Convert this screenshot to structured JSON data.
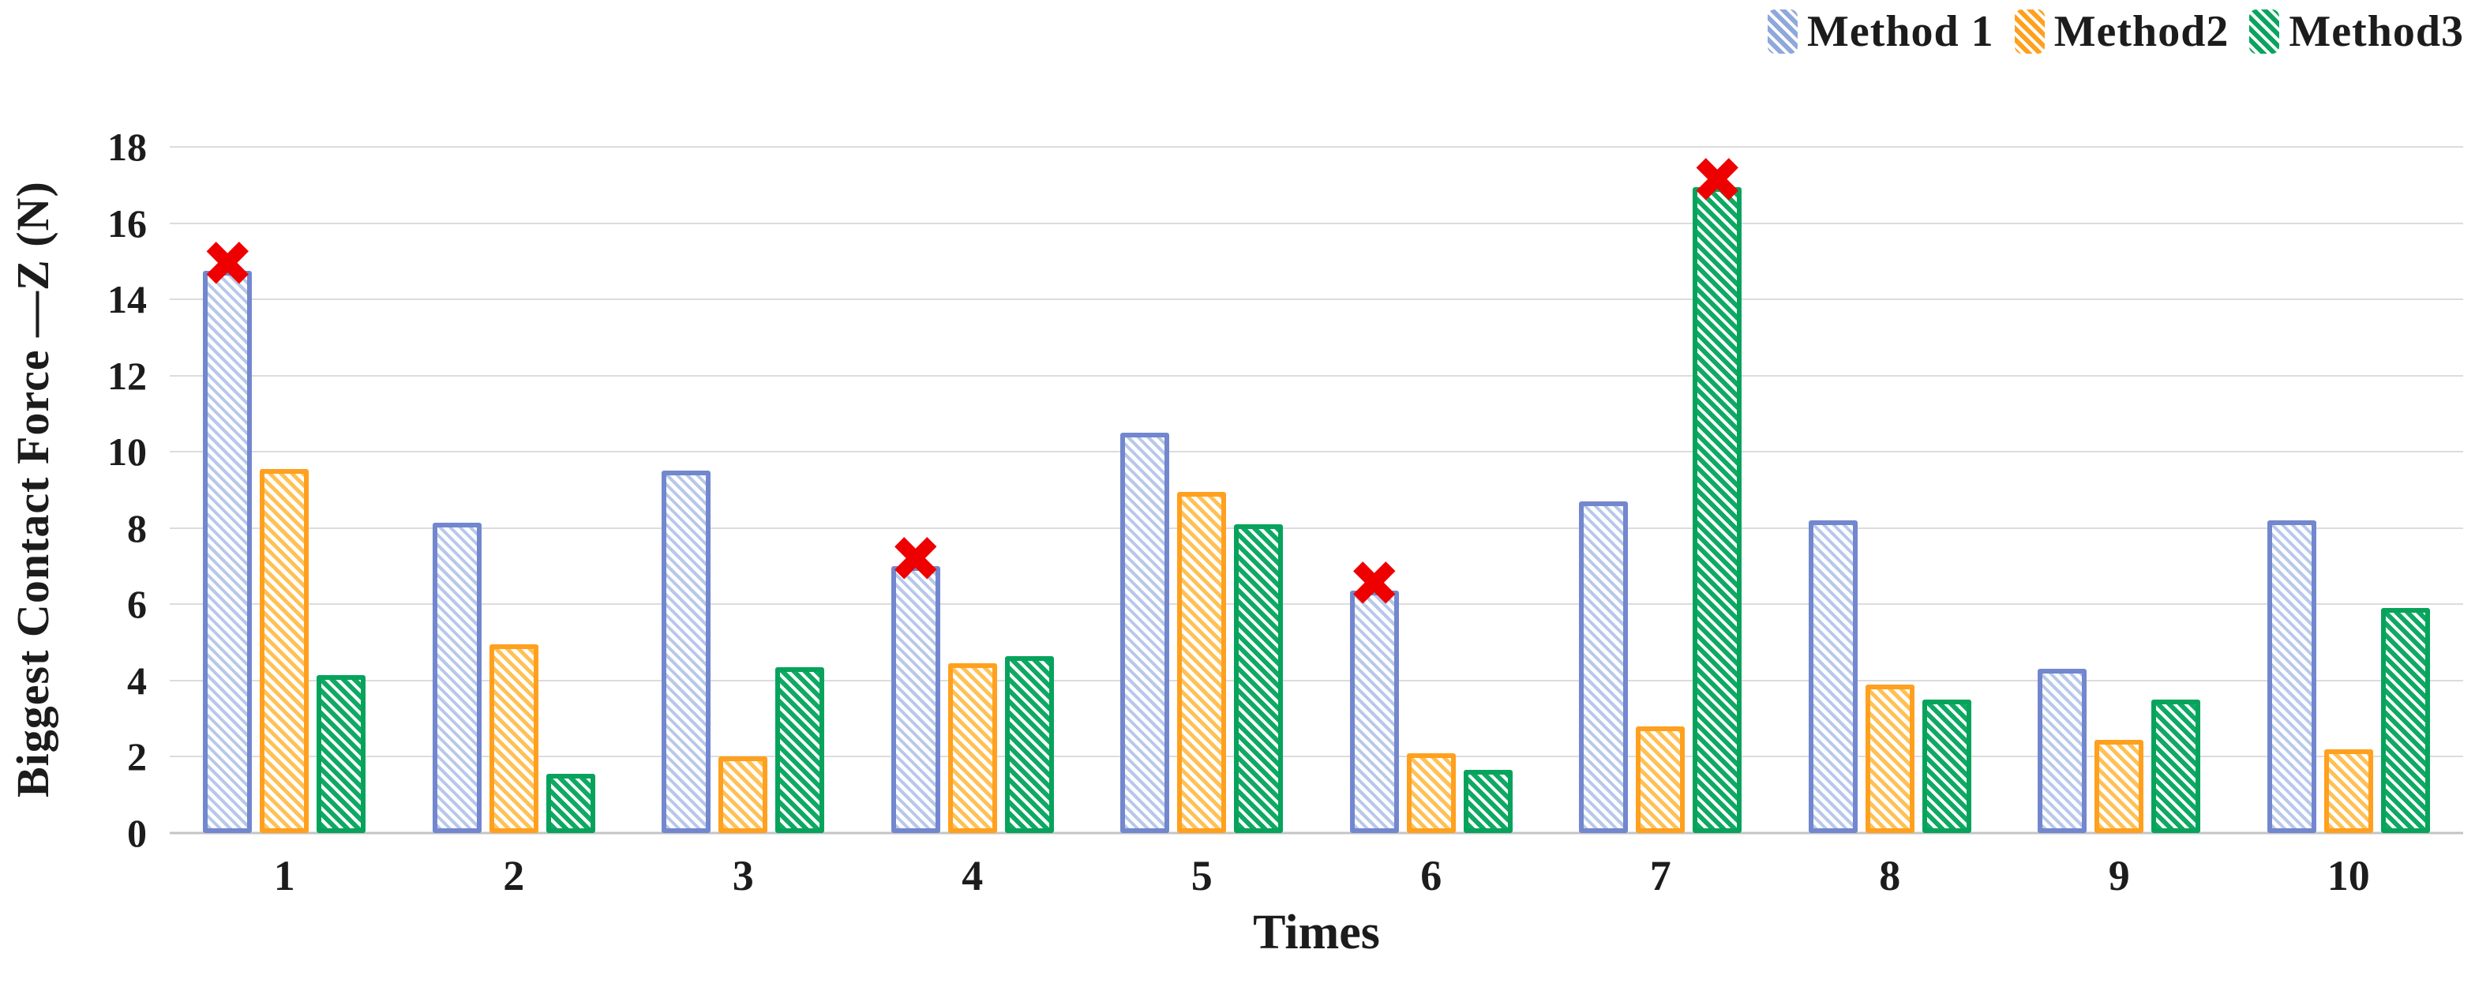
{
  "figure": {
    "y_axis_title": "Biggest Contact Force —Z (N)",
    "x_axis_title": "Times"
  },
  "chart_data": {
    "type": "bar",
    "title": "",
    "xlabel": "Times",
    "ylabel": "Biggest Contact Force —Z (N)",
    "ylim": [
      0,
      18
    ],
    "ytick_step": 2,
    "grid": true,
    "legend_position": "top-right",
    "categories": [
      1,
      2,
      3,
      4,
      5,
      6,
      7,
      8,
      9,
      10
    ],
    "series": [
      {
        "name": "Method 1",
        "border_color": "#7287CE",
        "hatch_color": "#B7C8EB",
        "swatch_color": "#8FA8DC",
        "hatch_width": 4,
        "hatch_gap": 5,
        "values": [
          14.75,
          8.15,
          9.5,
          7.0,
          10.5,
          6.35,
          8.7,
          8.2,
          4.3,
          8.2
        ]
      },
      {
        "name": "Method2",
        "border_color": "#FFA01E",
        "hatch_color": "#FFC155",
        "swatch_color": "#FFA01E",
        "hatch_width": 5,
        "hatch_gap": 5,
        "values": [
          9.55,
          4.95,
          2.0,
          4.45,
          8.95,
          2.1,
          2.8,
          3.9,
          2.45,
          2.2
        ]
      },
      {
        "name": "Method3",
        "border_color": "#07A35C",
        "hatch_color": "#0FA963",
        "swatch_color": "#0AA45E",
        "hatch_width": 6,
        "hatch_gap": 4,
        "values": [
          4.15,
          1.55,
          4.35,
          4.65,
          8.1,
          1.65,
          16.95,
          3.5,
          3.5,
          5.9
        ]
      }
    ],
    "markers": [
      {
        "series": "Method 1",
        "category": 1
      },
      {
        "series": "Method 1",
        "category": 4
      },
      {
        "series": "Method 1",
        "category": 6
      },
      {
        "series": "Method3",
        "category": 7
      }
    ],
    "marker_symbol": "✖",
    "marker_color": "#EF0000"
  },
  "colors": {
    "gridline": "#DCDCDC",
    "axis_line": "#C4C4C4",
    "text": "#1C1C1C",
    "background": "#FFFFFF"
  }
}
